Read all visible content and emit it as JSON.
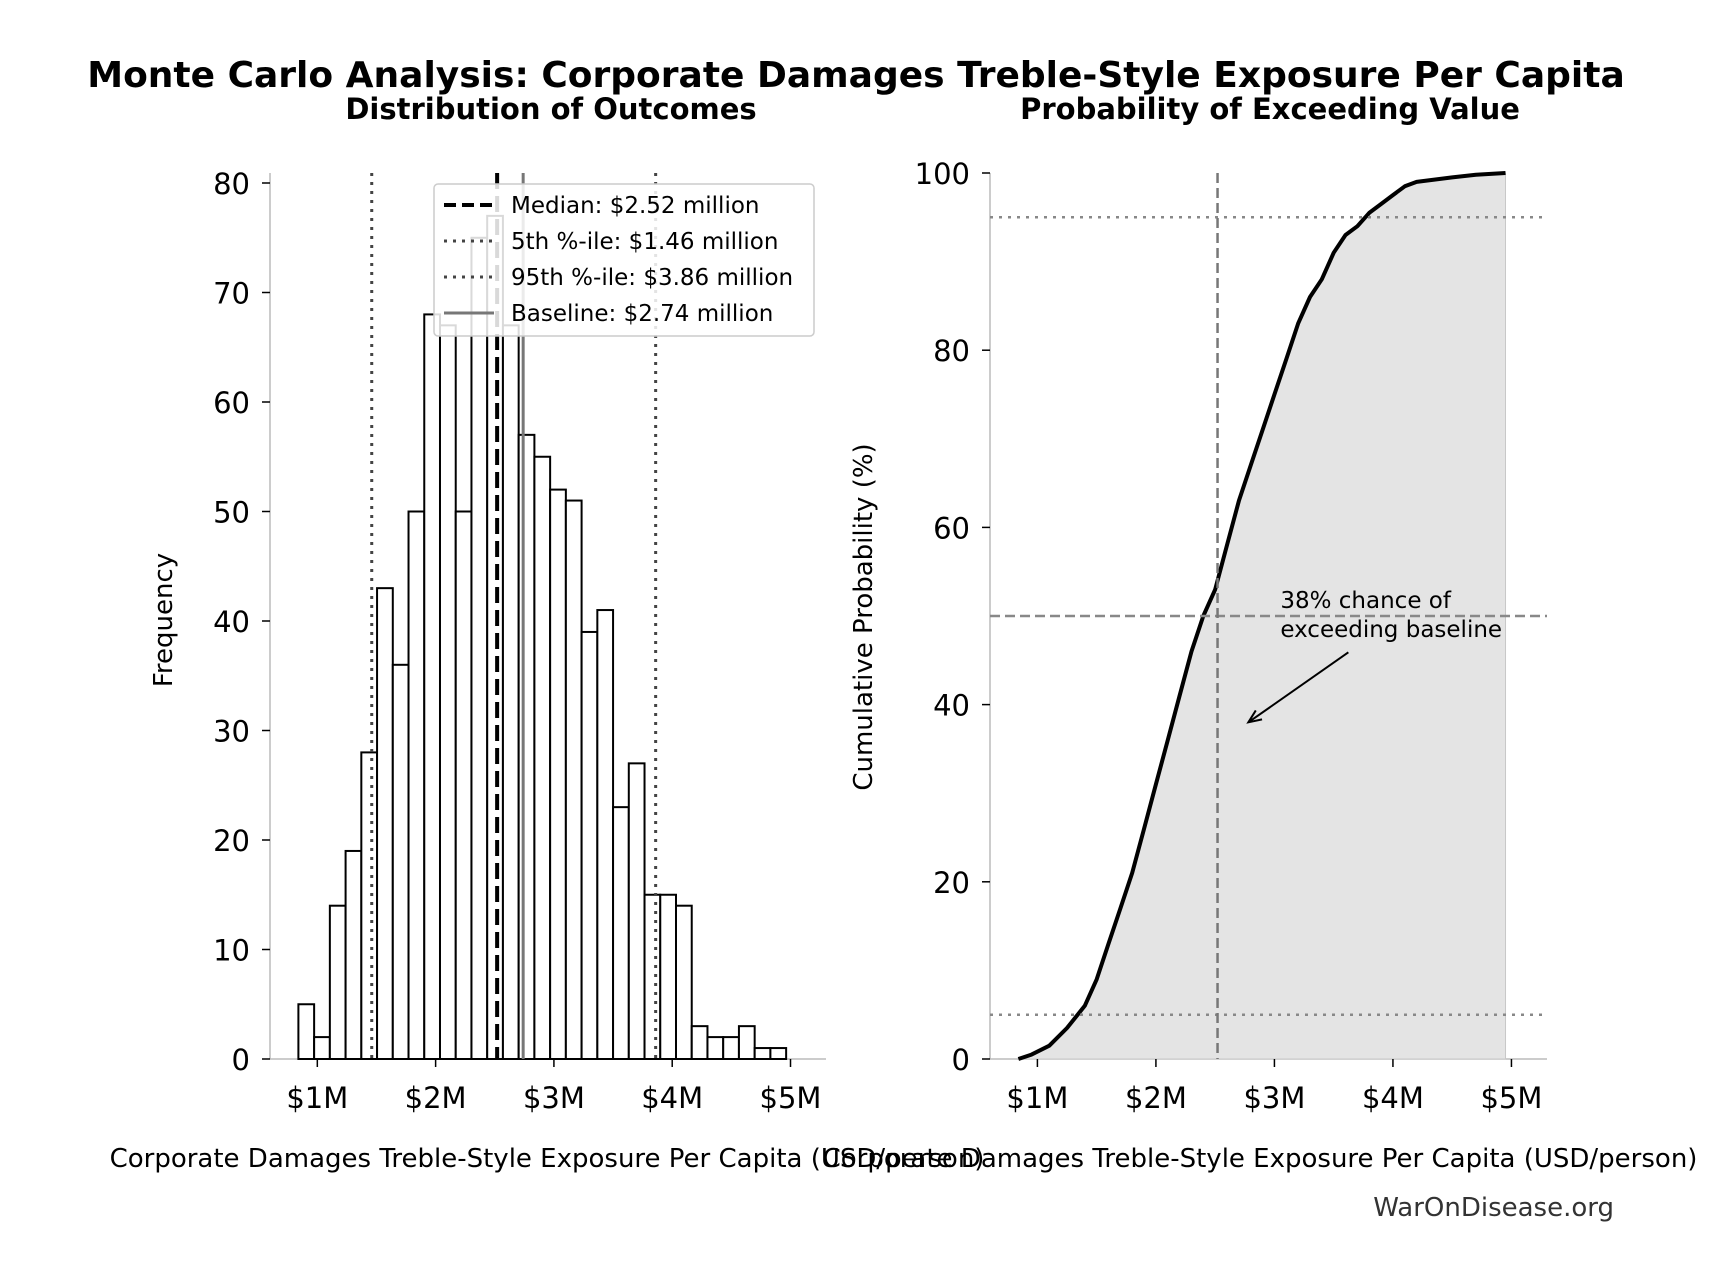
{
  "figure": {
    "suptitle": "Monte Carlo Analysis: Corporate Damages Treble-Style Exposure Per Capita",
    "watermark": "WarOnDisease.org"
  },
  "chart_data": [
    {
      "type": "bar",
      "title": "Distribution of Outcomes",
      "xlabel": "Corporate Damages Treble-Style Exposure Per Capita (USD/person)",
      "ylabel": "Frequency",
      "xlim": [
        0.6,
        5.3
      ],
      "ylim": [
        0,
        80
      ],
      "x_unit": "million USD per person",
      "x_ticks": [
        1,
        2,
        3,
        4,
        5
      ],
      "x_tick_labels": [
        "$1M",
        "$2M",
        "$3M",
        "$4M",
        "$5M"
      ],
      "y_ticks": [
        0,
        10,
        20,
        30,
        40,
        50,
        60,
        70,
        80
      ],
      "bin_width": 0.133,
      "bin_starts": [
        0.84,
        0.973,
        1.106,
        1.239,
        1.372,
        1.505,
        1.638,
        1.771,
        1.904,
        2.037,
        2.17,
        2.303,
        2.436,
        2.569,
        2.702,
        2.835,
        2.968,
        3.101,
        3.234,
        3.367,
        3.5,
        3.633,
        3.766,
        3.899,
        4.032,
        4.165,
        4.298,
        4.431,
        4.564,
        4.697,
        4.83
      ],
      "values": [
        5,
        2,
        14,
        19,
        28,
        43,
        36,
        50,
        68,
        67,
        50,
        75,
        77,
        67,
        57,
        55,
        52,
        51,
        39,
        41,
        23,
        27,
        15,
        15,
        14,
        3,
        2,
        2,
        3,
        1,
        1
      ],
      "reference_lines": [
        {
          "label": "Median: $2.52 million",
          "value": 2.52,
          "style": "dashed",
          "color": "#000000"
        },
        {
          "label": "5th %-ile: $1.46 million",
          "value": 1.46,
          "style": "dotted",
          "color": "#444444"
        },
        {
          "label": "95th %-ile: $3.86 million",
          "value": 3.86,
          "style": "dotted",
          "color": "#444444"
        },
        {
          "label": "Baseline: $2.74 million",
          "value": 2.74,
          "style": "solid",
          "color": "#777777"
        }
      ],
      "legend": "top-right"
    },
    {
      "type": "area",
      "title": "Probability of Exceeding Value",
      "xlabel": "Corporate Damages Treble-Style Exposure Per Capita (USD/person)",
      "ylabel": "Cumulative Probability (%)",
      "xlim": [
        0.6,
        5.3
      ],
      "ylim": [
        0,
        100
      ],
      "x_unit": "million USD per person",
      "x_ticks": [
        1,
        2,
        3,
        4,
        5
      ],
      "x_tick_labels": [
        "$1M",
        "$2M",
        "$3M",
        "$4M",
        "$5M"
      ],
      "y_ticks": [
        0,
        20,
        40,
        60,
        80,
        100
      ],
      "x": [
        0.84,
        0.95,
        1.1,
        1.25,
        1.4,
        1.5,
        1.6,
        1.7,
        1.8,
        1.9,
        2.0,
        2.1,
        2.2,
        2.3,
        2.4,
        2.5,
        2.6,
        2.7,
        2.8,
        2.9,
        3.0,
        3.1,
        3.2,
        3.3,
        3.4,
        3.5,
        3.6,
        3.7,
        3.8,
        3.9,
        4.0,
        4.1,
        4.2,
        4.5,
        4.7,
        4.95
      ],
      "y": [
        0,
        0.5,
        1.5,
        3.5,
        6,
        9,
        13,
        17,
        21,
        26,
        31,
        36,
        41,
        46,
        50,
        53,
        58,
        63,
        67,
        71,
        75,
        79,
        83,
        86,
        88,
        91,
        93,
        94,
        95.5,
        96.5,
        97.5,
        98.5,
        99,
        99.5,
        99.8,
        100
      ],
      "hlines": [
        {
          "value": 95,
          "style": "dotted"
        },
        {
          "value": 50,
          "style": "dashed"
        },
        {
          "value": 5,
          "style": "dotted"
        }
      ],
      "vline": {
        "value": 2.52,
        "style": "dashed"
      },
      "annotation": {
        "text_lines": [
          "38% chance of",
          "exceeding baseline"
        ],
        "point": [
          2.78,
          38
        ],
        "text_at": [
          3.05,
          49
        ]
      }
    }
  ]
}
